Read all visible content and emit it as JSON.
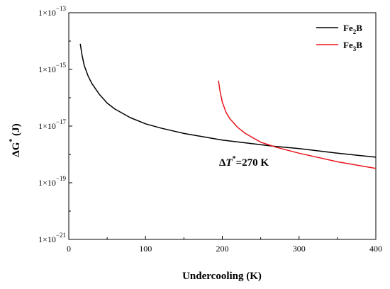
{
  "chart_data": {
    "type": "line",
    "xlabel": "Undercooling (K)",
    "ylabel": "ΔG* (J)",
    "ylabel_parts": {
      "delta": "ΔG",
      "star": "*",
      "unit": " (J)"
    },
    "xlim": [
      0,
      400
    ],
    "ylim": [
      1e-21,
      1e-13
    ],
    "yscale": "log",
    "x_ticks": [
      0,
      100,
      200,
      300,
      400
    ],
    "y_ticks": [
      {
        "value": 1e-21,
        "base": "1×10",
        "exp": "−21"
      },
      {
        "value": 1e-19,
        "base": "1×10",
        "exp": "−19"
      },
      {
        "value": 1e-17,
        "base": "1×10",
        "exp": "−17"
      },
      {
        "value": 1e-15,
        "base": "1×10",
        "exp": "−15"
      },
      {
        "value": 1e-13,
        "base": "1×10",
        "exp": "−13"
      }
    ],
    "legend_position": "top-right",
    "series": [
      {
        "name": "Fe2B",
        "legend_parts": {
          "a": "Fe",
          "sub": "2",
          "b": "B"
        },
        "color": "#000000",
        "x": [
          15,
          17,
          20,
          25,
          30,
          40,
          50,
          60,
          80,
          100,
          120,
          150,
          200,
          250,
          270,
          300,
          350,
          400
        ],
        "y": [
          8e-15,
          3.5e-15,
          1.4e-15,
          6e-16,
          3.2e-16,
          1.3e-16,
          6.5e-17,
          4e-17,
          2e-17,
          1.2e-17,
          8.5e-18,
          5.5e-18,
          3.2e-18,
          2.2e-18,
          1.9e-18,
          1.6e-18,
          1.1e-18,
          8e-19
        ]
      },
      {
        "name": "Fe3B",
        "legend_parts": {
          "a": "Fe",
          "sub": "3",
          "b": "B"
        },
        "color": "#e8141b",
        "x": [
          195,
          197,
          200,
          205,
          210,
          220,
          230,
          250,
          270,
          300,
          350,
          400
        ],
        "y": [
          4e-16,
          1.7e-16,
          7e-17,
          3e-17,
          1.8e-17,
          9e-18,
          5.5e-18,
          2.7e-18,
          1.8e-18,
          1.1e-18,
          5.5e-19,
          3.2e-19
        ]
      }
    ],
    "annotation": {
      "prefix": "Δ",
      "var": "T",
      "star": "*",
      "text": "=270 K",
      "x": 270
    }
  }
}
